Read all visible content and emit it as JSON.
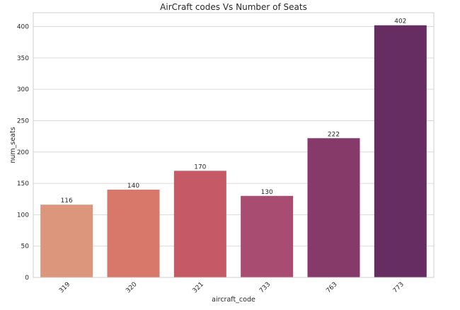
{
  "chart_data": {
    "type": "bar",
    "title": "AirCraft codes Vs Number of Seats",
    "xlabel": "aircraft_code",
    "ylabel": "num_seats",
    "categories": [
      "319",
      "320",
      "321",
      "733",
      "763",
      "773"
    ],
    "values": [
      116,
      140,
      170,
      130,
      222,
      402
    ],
    "ylim": [
      0,
      420
    ],
    "yticks": [
      0,
      50,
      100,
      150,
      200,
      250,
      300,
      350,
      400
    ],
    "colors": [
      "#dc967b",
      "#d7786a",
      "#c55a66",
      "#a94c71",
      "#853a6a",
      "#652d62"
    ],
    "grid": true,
    "x_tick_rotation": "45 degrees"
  }
}
